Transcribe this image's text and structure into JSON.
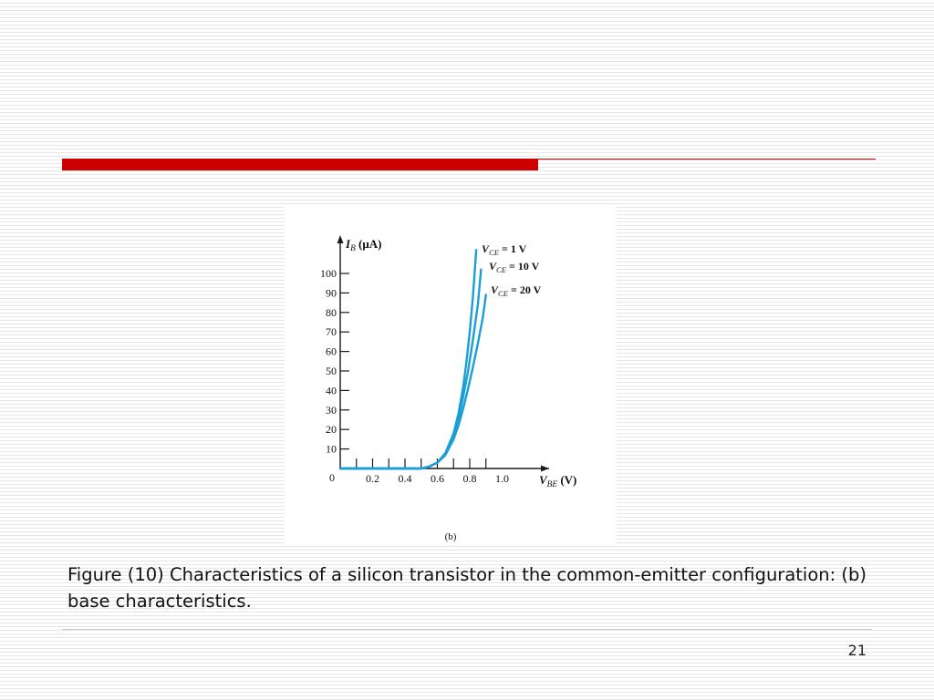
{
  "theme": {
    "accent": "#cc0000",
    "curve_color": "#1a9ed6",
    "axis_color": "#1a1a1a"
  },
  "slide": {
    "caption": "Figure (10) Characteristics of a silicon transistor in the common-emitter configuration: (b) base characteristics.",
    "page_number": "21"
  },
  "chart_data": {
    "type": "line",
    "ylabel": {
      "symbol": "I",
      "sub": "B",
      "unit": "(μA)"
    },
    "xlabel": {
      "symbol": "V",
      "sub": "BE",
      "unit": "(V)"
    },
    "panel_label": "(b)",
    "origin_label": "0",
    "xlim": [
      0,
      1.3
    ],
    "ylim": [
      0,
      110
    ],
    "x_ticks": [
      0.1,
      0.2,
      0.3,
      0.4,
      0.5,
      0.6,
      0.7,
      0.8,
      0.9
    ],
    "x_tick_labels": [
      "0.2",
      "0.4",
      "0.6",
      "0.8",
      "1.0"
    ],
    "x_tick_label_values": [
      0.2,
      0.4,
      0.6,
      0.8,
      1.0
    ],
    "y_ticks": [
      10,
      20,
      30,
      40,
      50,
      60,
      70,
      80,
      90,
      100
    ],
    "y_tick_labels": [
      "10",
      "20",
      "30",
      "40",
      "50",
      "60",
      "70",
      "80",
      "90",
      "100"
    ],
    "grid": false,
    "series": [
      {
        "name": "VCE = 1 V",
        "label_var": "V",
        "label_sub": "CE",
        "label_value": "= 1 V",
        "x": [
          0,
          0.5,
          0.55,
          0.6,
          0.65,
          0.7,
          0.73,
          0.76,
          0.78,
          0.8,
          0.82,
          0.84
        ],
        "y": [
          0,
          0,
          1,
          3,
          8,
          18,
          28,
          42,
          55,
          70,
          88,
          112
        ]
      },
      {
        "name": "VCE = 10 V",
        "label_var": "V",
        "label_sub": "CE",
        "label_value": "= 10 V",
        "x": [
          0,
          0.5,
          0.55,
          0.6,
          0.65,
          0.7,
          0.73,
          0.76,
          0.79,
          0.82,
          0.85,
          0.87
        ],
        "y": [
          0,
          0,
          1,
          3,
          7,
          16,
          25,
          37,
          50,
          66,
          84,
          102
        ]
      },
      {
        "name": "VCE = 20 V",
        "label_var": "V",
        "label_sub": "CE",
        "label_value": "= 20 V",
        "x": [
          0,
          0.5,
          0.55,
          0.6,
          0.65,
          0.7,
          0.73,
          0.76,
          0.79,
          0.82,
          0.85,
          0.88,
          0.9
        ],
        "y": [
          0,
          0,
          1,
          3,
          7,
          15,
          22,
          31,
          41,
          52,
          64,
          77,
          89
        ]
      }
    ]
  }
}
